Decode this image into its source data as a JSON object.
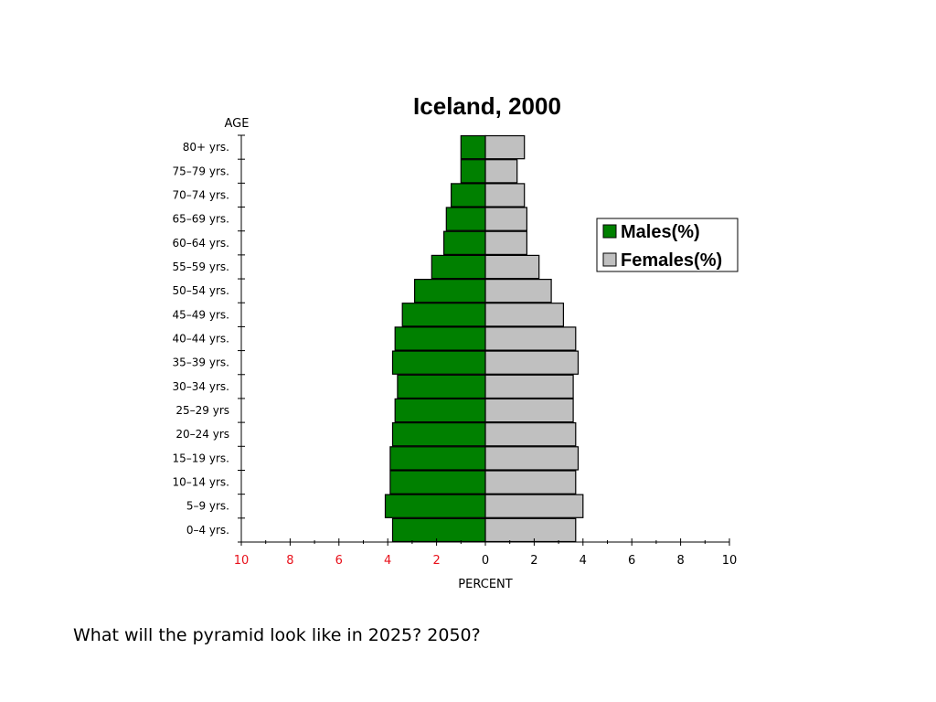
{
  "slide": {
    "question": "What will the pyramid look like in 2025? 2050?"
  },
  "chart_data": {
    "type": "bar",
    "orientation": "horizontal-population-pyramid",
    "title": "Iceland, 2000",
    "ylabel": "AGE",
    "xlabel": "PERCENT",
    "categories": [
      "0–4 yrs.",
      "5–9 yrs.",
      "10–14 yrs.",
      "15–19 yrs.",
      "20–24 yrs",
      "25–29 yrs",
      "30–34 yrs.",
      "35–39 yrs.",
      "40–44 yrs.",
      "45–49 yrs.",
      "50–54 yrs.",
      "55–59 yrs.",
      "60–64 yrs.",
      "65–69 yrs.",
      "70–74 yrs.",
      "75–79 yrs.",
      "80+ yrs."
    ],
    "series": [
      {
        "name": "Males(%)",
        "side": "left",
        "color": "#008000",
        "values": [
          3.8,
          4.1,
          3.9,
          3.9,
          3.8,
          3.7,
          3.6,
          3.8,
          3.7,
          3.4,
          2.9,
          2.2,
          1.7,
          1.6,
          1.4,
          1.0,
          1.0
        ]
      },
      {
        "name": "Females(%)",
        "side": "right",
        "color": "#c0c0c0",
        "values": [
          3.7,
          4.0,
          3.7,
          3.8,
          3.7,
          3.6,
          3.6,
          3.8,
          3.7,
          3.2,
          2.7,
          2.2,
          1.7,
          1.7,
          1.6,
          1.3,
          1.6
        ]
      }
    ],
    "xlim": [
      -10,
      10
    ],
    "x_ticks": [
      -10,
      -8,
      -6,
      -4,
      -2,
      0,
      2,
      4,
      6,
      8,
      10
    ],
    "x_tick_labels": [
      "10",
      "8",
      "6",
      "4",
      "2",
      "0",
      "2",
      "4",
      "6",
      "8",
      "10"
    ],
    "x_tick_colors": {
      "negative": "#e8101a",
      "non_negative": "#000000"
    },
    "legend_placement": "right",
    "grid": false
  }
}
